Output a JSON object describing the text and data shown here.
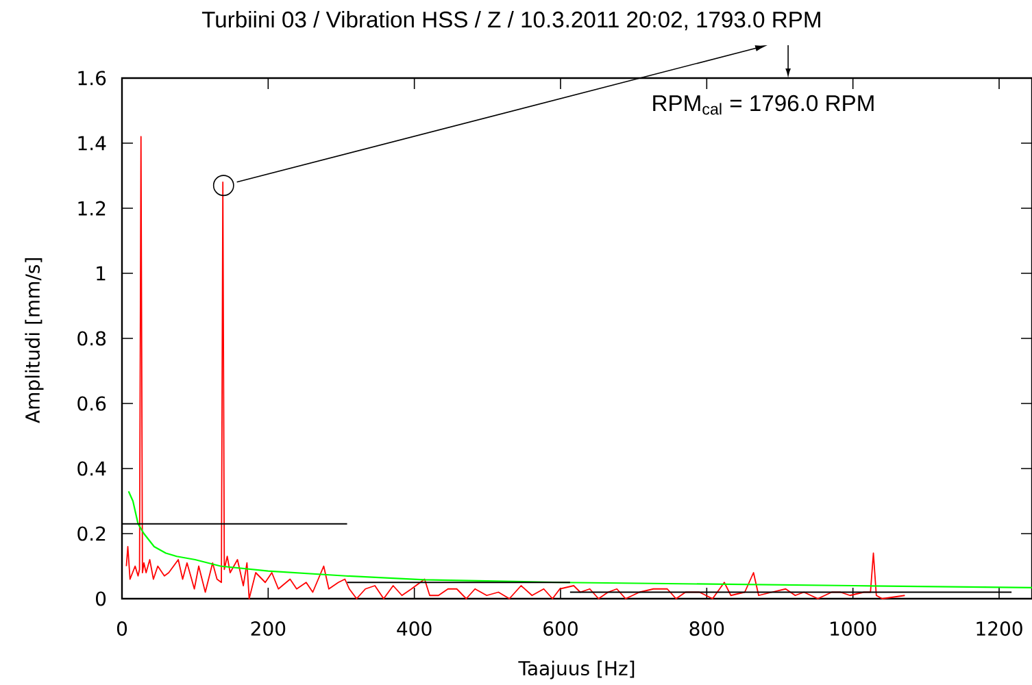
{
  "chart_data": {
    "type": "line",
    "title": "Turbiini 03 / Vibration HSS / Z / 10.3.2011 20:02, 1793.0 RPM",
    "xlabel": "Taajuus [Hz]",
    "ylabel": "Amplitudi [mm/s]",
    "annotations": [
      "RPM$_{cal}$ = 1796.0 RPM"
    ],
    "xlim": [
      0,
      1245
    ],
    "ylim": [
      0,
      1.6
    ],
    "xticks": [
      0,
      200,
      400,
      600,
      800,
      1000,
      1200
    ],
    "yticks": [
      0,
      0.2,
      0.4,
      0.6,
      0.8,
      1,
      1.2,
      1.4,
      1.6
    ],
    "series": [
      {
        "color": "#ff0000",
        "x": [
          6,
          8,
          11,
          18,
          22,
          24,
          26,
          28,
          30,
          33,
          38,
          43,
          49,
          58,
          64,
          77,
          83,
          89,
          99,
          105,
          114,
          124,
          130,
          136,
          138,
          140,
          144,
          148,
          158,
          166,
          171,
          174,
          183,
          196,
          205,
          214,
          230,
          239,
          252,
          261,
          276,
          283,
          296,
          305,
          311,
          321,
          333,
          346,
          358,
          371,
          383,
          396,
          414,
          421,
          433,
          446,
          458,
          471,
          483,
          499,
          515,
          530,
          546,
          561,
          577,
          589,
          599,
          618,
          627,
          640,
          652,
          665,
          677,
          689,
          708,
          727,
          746,
          758,
          771,
          790,
          808,
          824,
          833,
          852,
          864,
          871,
          889,
          908,
          921,
          933,
          952,
          971,
          983,
          996,
          1015,
          1024,
          1028,
          1032,
          1040,
          1071
        ],
        "values": [
          0.1,
          0.16,
          0.06,
          0.1,
          0.07,
          0.09,
          1.42,
          0.08,
          0.11,
          0.08,
          0.12,
          0.06,
          0.1,
          0.07,
          0.08,
          0.12,
          0.06,
          0.11,
          0.03,
          0.1,
          0.02,
          0.11,
          0.06,
          0.05,
          1.28,
          0.09,
          0.13,
          0.08,
          0.12,
          0.04,
          0.11,
          0,
          0.08,
          0.05,
          0.08,
          0.03,
          0.06,
          0.03,
          0.05,
          0.02,
          0.1,
          0.03,
          0.05,
          0.06,
          0.03,
          0,
          0.03,
          0.04,
          0,
          0.04,
          0.01,
          0.03,
          0.06,
          0.01,
          0.01,
          0.03,
          0.03,
          0,
          0.03,
          0.01,
          0.02,
          0,
          0.04,
          0.01,
          0.03,
          0,
          0.03,
          0.04,
          0.02,
          0.03,
          0,
          0.02,
          0.03,
          0,
          0.02,
          0.03,
          0.03,
          0,
          0.02,
          0.02,
          0,
          0.05,
          0.01,
          0.02,
          0.08,
          0.01,
          0.02,
          0.03,
          0.01,
          0.02,
          0,
          0.02,
          0.02,
          0.01,
          0.02,
          0.02,
          0.14,
          0.01,
          0,
          0.01
        ]
      },
      {
        "color": "#00ff00",
        "x": [
          9,
          15,
          22,
          30,
          44,
          60,
          75,
          100,
          135,
          200,
          306,
          413,
          600,
          800,
          1000,
          1245
        ],
        "values": [
          0.33,
          0.3,
          0.23,
          0.2,
          0.16,
          0.14,
          0.13,
          0.12,
          0.1,
          0.085,
          0.07,
          0.058,
          0.05,
          0.045,
          0.04,
          0.034
        ]
      },
      {
        "color": "#000000",
        "x": [
          0,
          308
        ],
        "values": [
          0.23,
          0.23
        ]
      },
      {
        "color": "#000000",
        "x": [
          308,
          613
        ],
        "values": [
          0.05,
          0.05
        ]
      },
      {
        "color": "#000000",
        "x": [
          613,
          1217
        ],
        "values": [
          0.02,
          0.02
        ]
      },
      {
        "type": "scatter",
        "marker": "circle",
        "color": "#000000",
        "x": [
          139
        ],
        "values": [
          1.27
        ]
      }
    ]
  }
}
